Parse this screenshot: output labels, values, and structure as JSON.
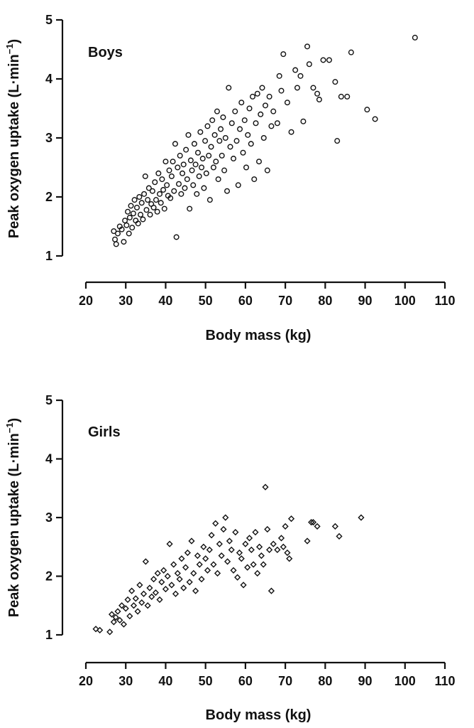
{
  "chart_data": [
    {
      "type": "scatter",
      "panel_label": "Boys",
      "marker": "circle",
      "xlabel": "Body mass (kg)",
      "ylabel": "Peak oxygen uptake (L·min",
      "ylabel_superscript": "−1",
      "ylabel_close": ")",
      "xlim": [
        20,
        110
      ],
      "ylim": [
        1,
        5
      ],
      "xticks": [
        20,
        30,
        40,
        50,
        60,
        70,
        80,
        90,
        100,
        110
      ],
      "yticks": [
        1,
        2,
        3,
        4,
        5
      ],
      "grid": false,
      "series": [
        {
          "points": [
            [
              27.0,
              1.42
            ],
            [
              27.3,
              1.28
            ],
            [
              27.6,
              1.2
            ],
            [
              28.0,
              1.38
            ],
            [
              28.5,
              1.5
            ],
            [
              29.0,
              1.45
            ],
            [
              29.5,
              1.24
            ],
            [
              29.8,
              1.6
            ],
            [
              30.2,
              1.52
            ],
            [
              30.5,
              1.75
            ],
            [
              30.8,
              1.38
            ],
            [
              31.0,
              1.65
            ],
            [
              31.3,
              1.85
            ],
            [
              31.6,
              1.48
            ],
            [
              31.9,
              1.72
            ],
            [
              32.2,
              1.95
            ],
            [
              32.5,
              1.6
            ],
            [
              32.8,
              1.82
            ],
            [
              33.1,
              1.55
            ],
            [
              33.4,
              2.0
            ],
            [
              33.7,
              1.7
            ],
            [
              34.0,
              1.9
            ],
            [
              34.3,
              1.62
            ],
            [
              34.6,
              2.05
            ],
            [
              34.9,
              2.35
            ],
            [
              35.2,
              1.78
            ],
            [
              35.5,
              1.95
            ],
            [
              35.8,
              2.15
            ],
            [
              36.1,
              1.7
            ],
            [
              36.4,
              1.88
            ],
            [
              36.7,
              2.1
            ],
            [
              37.0,
              1.82
            ],
            [
              37.3,
              2.25
            ],
            [
              37.6,
              1.95
            ],
            [
              37.9,
              1.75
            ],
            [
              38.2,
              2.4
            ],
            [
              38.5,
              2.05
            ],
            [
              38.8,
              1.9
            ],
            [
              39.1,
              2.3
            ],
            [
              39.4,
              2.12
            ],
            [
              39.7,
              1.8
            ],
            [
              40.0,
              2.6
            ],
            [
              40.3,
              2.2
            ],
            [
              40.6,
              2.02
            ],
            [
              40.9,
              2.45
            ],
            [
              41.2,
              1.98
            ],
            [
              41.5,
              2.35
            ],
            [
              41.8,
              2.6
            ],
            [
              42.1,
              2.1
            ],
            [
              42.4,
              2.9
            ],
            [
              42.7,
              1.32
            ],
            [
              43.0,
              2.5
            ],
            [
              43.3,
              2.22
            ],
            [
              43.6,
              2.7
            ],
            [
              43.9,
              2.05
            ],
            [
              44.2,
              2.4
            ],
            [
              44.5,
              2.55
            ],
            [
              44.8,
              2.15
            ],
            [
              45.1,
              2.8
            ],
            [
              45.4,
              2.3
            ],
            [
              45.7,
              3.05
            ],
            [
              46.0,
              1.8
            ],
            [
              46.3,
              2.62
            ],
            [
              46.6,
              2.45
            ],
            [
              46.9,
              2.2
            ],
            [
              47.2,
              2.9
            ],
            [
              47.5,
              2.55
            ],
            [
              47.8,
              2.05
            ],
            [
              48.1,
              2.75
            ],
            [
              48.4,
              2.35
            ],
            [
              48.7,
              3.1
            ],
            [
              49.0,
              2.5
            ],
            [
              49.3,
              2.65
            ],
            [
              49.6,
              2.15
            ],
            [
              49.9,
              2.95
            ],
            [
              50.2,
              2.4
            ],
            [
              50.5,
              3.2
            ],
            [
              50.8,
              2.7
            ],
            [
              51.1,
              1.95
            ],
            [
              51.4,
              2.85
            ],
            [
              51.7,
              3.3
            ],
            [
              52.0,
              2.5
            ],
            [
              52.3,
              3.05
            ],
            [
              52.6,
              2.6
            ],
            [
              52.9,
              3.45
            ],
            [
              53.2,
              2.3
            ],
            [
              53.5,
              2.95
            ],
            [
              53.8,
              3.15
            ],
            [
              54.1,
              2.7
            ],
            [
              54.4,
              3.35
            ],
            [
              54.7,
              2.45
            ],
            [
              55.0,
              3.0
            ],
            [
              55.4,
              2.1
            ],
            [
              55.8,
              3.85
            ],
            [
              56.2,
              2.85
            ],
            [
              56.6,
              3.25
            ],
            [
              57.0,
              2.65
            ],
            [
              57.4,
              3.45
            ],
            [
              57.8,
              2.95
            ],
            [
              58.2,
              2.2
            ],
            [
              58.6,
              3.15
            ],
            [
              59.0,
              3.6
            ],
            [
              59.4,
              2.75
            ],
            [
              59.8,
              3.3
            ],
            [
              60.2,
              2.5
            ],
            [
              60.6,
              3.05
            ],
            [
              61.0,
              3.5
            ],
            [
              61.4,
              2.9
            ],
            [
              61.8,
              3.7
            ],
            [
              62.2,
              2.3
            ],
            [
              62.6,
              3.25
            ],
            [
              63.0,
              3.75
            ],
            [
              63.4,
              2.6
            ],
            [
              63.8,
              3.4
            ],
            [
              64.2,
              3.85
            ],
            [
              64.6,
              3.0
            ],
            [
              65.0,
              3.55
            ],
            [
              65.5,
              2.45
            ],
            [
              66.0,
              3.7
            ],
            [
              66.5,
              3.2
            ],
            [
              67.0,
              3.45
            ],
            [
              68.0,
              3.25
            ],
            [
              68.5,
              4.05
            ],
            [
              69.0,
              3.8
            ],
            [
              69.5,
              4.42
            ],
            [
              70.5,
              3.6
            ],
            [
              71.5,
              3.1
            ],
            [
              72.5,
              4.15
            ],
            [
              73.0,
              3.85
            ],
            [
              73.8,
              4.05
            ],
            [
              74.5,
              3.28
            ],
            [
              75.5,
              4.55
            ],
            [
              76.0,
              4.25
            ],
            [
              77.0,
              3.85
            ],
            [
              78.0,
              3.75
            ],
            [
              78.5,
              3.65
            ],
            [
              79.5,
              4.32
            ],
            [
              81.0,
              4.32
            ],
            [
              82.5,
              3.95
            ],
            [
              83.0,
              2.95
            ],
            [
              84.0,
              3.7
            ],
            [
              85.5,
              3.7
            ],
            [
              86.5,
              4.45
            ],
            [
              90.5,
              3.48
            ],
            [
              92.5,
              3.32
            ],
            [
              102.5,
              4.7
            ]
          ]
        }
      ]
    },
    {
      "type": "scatter",
      "panel_label": "Girls",
      "marker": "diamond",
      "xlabel": "Body mass (kg)",
      "ylabel": "Peak oxygen uptake (L·min",
      "ylabel_superscript": "−1",
      "ylabel_close": ")",
      "xlim": [
        20,
        110
      ],
      "ylim": [
        1,
        5
      ],
      "xticks": [
        20,
        30,
        40,
        50,
        60,
        70,
        80,
        90,
        100,
        110
      ],
      "yticks": [
        1,
        2,
        3,
        4,
        5
      ],
      "grid": false,
      "series": [
        {
          "points": [
            [
              22.5,
              1.1
            ],
            [
              23.5,
              1.08
            ],
            [
              26.0,
              1.05
            ],
            [
              26.5,
              1.35
            ],
            [
              27.0,
              1.22
            ],
            [
              27.5,
              1.3
            ],
            [
              28.0,
              1.4
            ],
            [
              28.5,
              1.25
            ],
            [
              29.0,
              1.5
            ],
            [
              29.5,
              1.18
            ],
            [
              30.0,
              1.45
            ],
            [
              30.5,
              1.6
            ],
            [
              31.0,
              1.32
            ],
            [
              31.5,
              1.75
            ],
            [
              32.0,
              1.5
            ],
            [
              32.5,
              1.62
            ],
            [
              33.0,
              1.4
            ],
            [
              33.5,
              1.85
            ],
            [
              34.0,
              1.55
            ],
            [
              34.5,
              1.7
            ],
            [
              35.0,
              2.25
            ],
            [
              35.5,
              1.5
            ],
            [
              36.0,
              1.8
            ],
            [
              36.5,
              1.65
            ],
            [
              37.0,
              1.95
            ],
            [
              37.5,
              1.72
            ],
            [
              38.0,
              2.05
            ],
            [
              38.5,
              1.6
            ],
            [
              39.0,
              1.9
            ],
            [
              39.5,
              2.1
            ],
            [
              40.0,
              1.78
            ],
            [
              40.5,
              2.0
            ],
            [
              41.0,
              2.55
            ],
            [
              41.5,
              1.85
            ],
            [
              42.0,
              2.2
            ],
            [
              42.5,
              1.7
            ],
            [
              43.0,
              2.05
            ],
            [
              43.5,
              1.95
            ],
            [
              44.0,
              2.3
            ],
            [
              44.5,
              1.8
            ],
            [
              45.0,
              2.15
            ],
            [
              45.5,
              2.4
            ],
            [
              46.0,
              1.9
            ],
            [
              46.5,
              2.6
            ],
            [
              47.0,
              2.05
            ],
            [
              47.5,
              1.75
            ],
            [
              48.0,
              2.35
            ],
            [
              48.5,
              2.2
            ],
            [
              49.0,
              1.95
            ],
            [
              49.5,
              2.5
            ],
            [
              50.0,
              2.3
            ],
            [
              50.5,
              2.1
            ],
            [
              51.0,
              2.45
            ],
            [
              51.5,
              2.7
            ],
            [
              52.0,
              2.2
            ],
            [
              52.5,
              2.9
            ],
            [
              53.0,
              2.05
            ],
            [
              53.5,
              2.55
            ],
            [
              54.0,
              2.35
            ],
            [
              54.5,
              2.8
            ],
            [
              55.0,
              3.0
            ],
            [
              55.5,
              2.25
            ],
            [
              56.0,
              2.6
            ],
            [
              56.5,
              2.45
            ],
            [
              57.0,
              2.1
            ],
            [
              57.5,
              2.75
            ],
            [
              58.0,
              1.98
            ],
            [
              58.5,
              2.4
            ],
            [
              59.0,
              2.3
            ],
            [
              59.5,
              1.85
            ],
            [
              60.0,
              2.55
            ],
            [
              60.5,
              2.15
            ],
            [
              61.0,
              2.65
            ],
            [
              61.5,
              2.45
            ],
            [
              62.0,
              2.2
            ],
            [
              62.5,
              2.75
            ],
            [
              63.0,
              2.05
            ],
            [
              63.5,
              2.5
            ],
            [
              64.0,
              2.35
            ],
            [
              64.5,
              2.2
            ],
            [
              65.0,
              3.52
            ],
            [
              65.5,
              2.8
            ],
            [
              66.0,
              2.45
            ],
            [
              66.5,
              1.75
            ],
            [
              67.0,
              2.55
            ],
            [
              68.0,
              2.45
            ],
            [
              69.0,
              2.65
            ],
            [
              69.5,
              2.5
            ],
            [
              70.0,
              2.85
            ],
            [
              70.5,
              2.4
            ],
            [
              71.0,
              2.3
            ],
            [
              71.5,
              2.98
            ],
            [
              75.5,
              2.6
            ],
            [
              76.5,
              2.92
            ],
            [
              77.0,
              2.92
            ],
            [
              78.0,
              2.85
            ],
            [
              82.5,
              2.85
            ],
            [
              83.5,
              2.68
            ],
            [
              89.0,
              3.0
            ]
          ]
        }
      ]
    }
  ]
}
